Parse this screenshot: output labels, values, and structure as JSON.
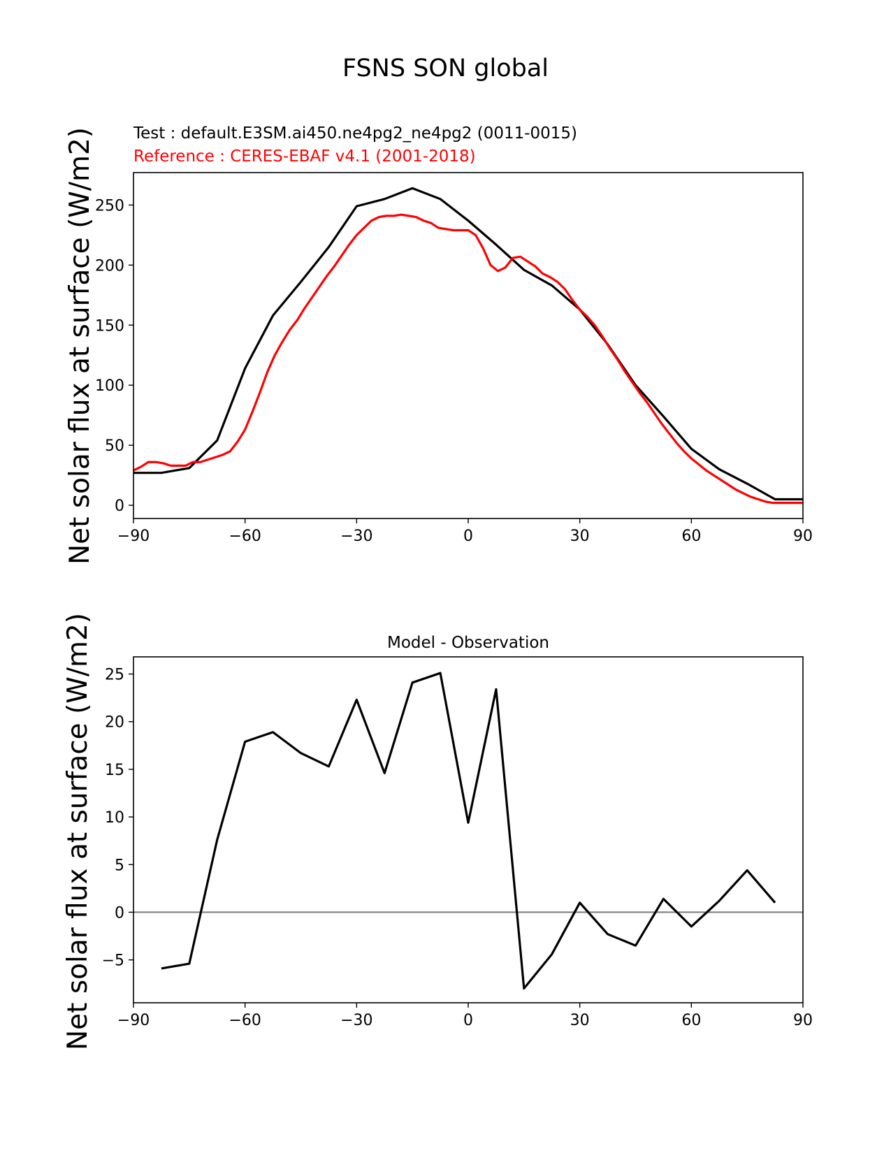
{
  "figure": {
    "title": "FSNS SON global",
    "background": "#ffffff"
  },
  "chart_data": [
    {
      "type": "line",
      "subtitle_test": "Test : default.E3SM.ai450.ne4pg2_ne4pg2 (0011-0015)",
      "subtitle_reference": "Reference : CERES-EBAF v4.1 (2001-2018)",
      "xlabel": "",
      "ylabel": "Net solar flux at surface (W/m2)",
      "xlim": [
        -90,
        90
      ],
      "ylim": [
        -11,
        277
      ],
      "xticks": [
        -90,
        -60,
        -30,
        0,
        30,
        60,
        90
      ],
      "xtick_labels": [
        "−90",
        "−60",
        "−30",
        "0",
        "30",
        "60",
        "90"
      ],
      "yticks": [
        0,
        50,
        100,
        150,
        200,
        250
      ],
      "ytick_labels": [
        "0",
        "50",
        "100",
        "150",
        "200",
        "250"
      ],
      "grid": false,
      "series": [
        {
          "color": "#000000",
          "x": [
            -90,
            -82.5,
            -75,
            -67.5,
            -60,
            -52.5,
            -45,
            -37.5,
            -30,
            -22.5,
            -15,
            -7.5,
            0,
            7.5,
            15,
            22.5,
            30,
            37.5,
            45,
            52.5,
            60,
            67.5,
            75,
            82.5,
            90
          ],
          "y": [
            27,
            27,
            31,
            54,
            114,
            158,
            186,
            215,
            249,
            255,
            264,
            255,
            237,
            217,
            196,
            183,
            163,
            134,
            100,
            74,
            47,
            30,
            18,
            5,
            5
          ]
        },
        {
          "color": "#ff0000",
          "x": [
            -90,
            -88,
            -86,
            -84,
            -82,
            -80,
            -78,
            -76,
            -74,
            -72,
            -70,
            -68,
            -66,
            -64,
            -62,
            -60,
            -58,
            -56,
            -54,
            -52,
            -50,
            -48,
            -46,
            -44,
            -42,
            -40,
            -38,
            -36,
            -34,
            -32,
            -30,
            -28,
            -26,
            -24,
            -22,
            -20,
            -18,
            -16,
            -14,
            -12,
            -10,
            -8,
            -6,
            -4,
            -2,
            0,
            2,
            4,
            6,
            8,
            10,
            12,
            14,
            16,
            18,
            20,
            22,
            24,
            26,
            28,
            30,
            32,
            34,
            36,
            38,
            40,
            42,
            44,
            46,
            48,
            50,
            52,
            54,
            56,
            58,
            60,
            62,
            64,
            66,
            68,
            70,
            72,
            74,
            76,
            78,
            80,
            82,
            84,
            86,
            88,
            90
          ],
          "y": [
            29,
            32,
            36,
            36,
            35,
            33,
            33,
            33,
            36,
            36,
            38,
            40,
            42,
            45,
            53,
            63,
            78,
            94,
            111,
            125,
            136,
            146,
            154,
            164,
            173,
            182,
            191,
            199,
            208,
            217,
            225,
            231,
            237,
            240,
            241,
            241,
            242,
            241,
            240,
            237,
            235,
            231,
            230,
            229,
            229,
            229,
            225,
            214,
            200,
            195,
            198,
            206,
            207,
            203,
            199,
            193,
            190,
            186,
            180,
            171,
            163,
            157,
            150,
            141,
            131,
            122,
            112,
            103,
            94,
            86,
            77,
            68,
            60,
            52,
            45,
            39,
            34,
            29,
            25,
            21,
            17,
            13,
            10,
            7,
            5,
            3,
            2,
            2,
            2,
            2,
            2
          ]
        }
      ]
    },
    {
      "type": "line",
      "title": "Model - Observation",
      "xlabel": "",
      "ylabel": "Net solar flux at surface (W/m2)",
      "xlim": [
        -90,
        90
      ],
      "ylim": [
        -9.5,
        26.8
      ],
      "xticks": [
        -90,
        -60,
        -30,
        0,
        30,
        60,
        90
      ],
      "xtick_labels": [
        "−90",
        "−60",
        "−30",
        "0",
        "30",
        "60",
        "90"
      ],
      "yticks": [
        -5,
        0,
        5,
        10,
        15,
        20,
        25
      ],
      "ytick_labels": [
        "−5",
        "0",
        "5",
        "10",
        "15",
        "20",
        "25"
      ],
      "grid": false,
      "zero_line": {
        "y": 0,
        "color": "#808080"
      },
      "series": [
        {
          "color": "#000000",
          "x": [
            -82.5,
            -75,
            -67.5,
            -60,
            -52.5,
            -45,
            -37.5,
            -30,
            -22.5,
            -15,
            -7.5,
            0,
            7.5,
            15,
            22.5,
            30,
            37.5,
            45,
            52.5,
            60,
            67.5,
            75,
            82.5
          ],
          "y": [
            -5.9,
            -5.4,
            7.6,
            17.9,
            18.9,
            16.7,
            15.3,
            22.3,
            14.6,
            24.1,
            25.1,
            9.4,
            23.4,
            -8.0,
            -4.4,
            1.0,
            -2.3,
            -3.5,
            1.4,
            -1.5,
            1.2,
            4.4,
            1.0
          ]
        }
      ]
    }
  ]
}
